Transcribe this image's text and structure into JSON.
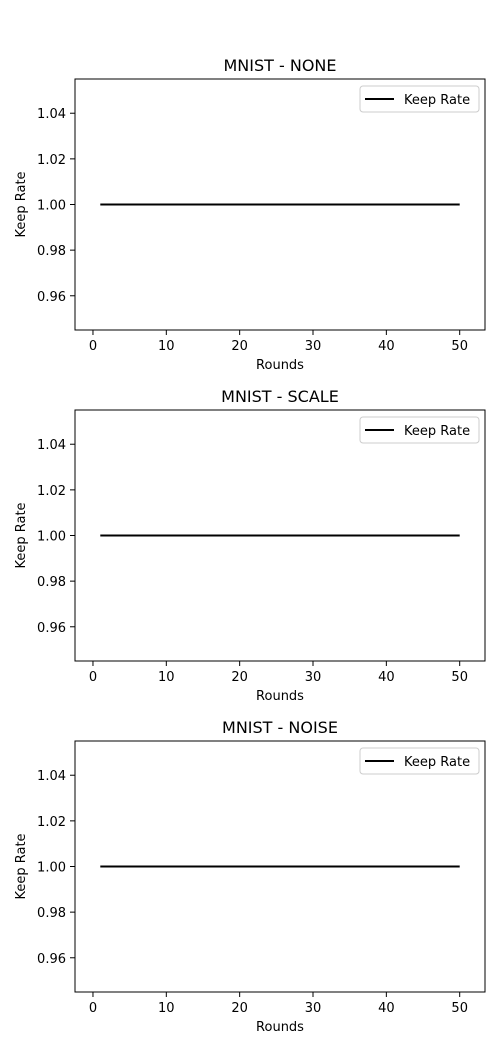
{
  "chart_data": [
    {
      "type": "line",
      "title": "MNIST - NONE",
      "xlabel": "Rounds",
      "ylabel": "Keep Rate",
      "xlim": [
        -2.45,
        53.45
      ],
      "ylim": [
        0.945,
        1.055
      ],
      "xticks": [
        0,
        10,
        20,
        30,
        40,
        50
      ],
      "xtick_labels": [
        "0",
        "10",
        "20",
        "30",
        "40",
        "50"
      ],
      "yticks": [
        0.96,
        0.98,
        1.0,
        1.02,
        1.04
      ],
      "ytick_labels": [
        "0.96",
        "0.98",
        "1.00",
        "1.02",
        "1.04"
      ],
      "grid": false,
      "legend": "top-right",
      "series": [
        {
          "name": "Keep Rate",
          "color": "#000000",
          "x": [
            1,
            50
          ],
          "y": [
            1.0,
            1.0
          ]
        }
      ]
    },
    {
      "type": "line",
      "title": "MNIST - SCALE",
      "xlabel": "Rounds",
      "ylabel": "Keep Rate",
      "xlim": [
        -2.45,
        53.45
      ],
      "ylim": [
        0.945,
        1.055
      ],
      "xticks": [
        0,
        10,
        20,
        30,
        40,
        50
      ],
      "xtick_labels": [
        "0",
        "10",
        "20",
        "30",
        "40",
        "50"
      ],
      "yticks": [
        0.96,
        0.98,
        1.0,
        1.02,
        1.04
      ],
      "ytick_labels": [
        "0.96",
        "0.98",
        "1.00",
        "1.02",
        "1.04"
      ],
      "grid": false,
      "legend": "top-right",
      "series": [
        {
          "name": "Keep Rate",
          "color": "#000000",
          "x": [
            1,
            50
          ],
          "y": [
            1.0,
            1.0
          ]
        }
      ]
    },
    {
      "type": "line",
      "title": "MNIST - NOISE",
      "xlabel": "Rounds",
      "ylabel": "Keep Rate",
      "xlim": [
        -2.45,
        53.45
      ],
      "ylim": [
        0.945,
        1.055
      ],
      "xticks": [
        0,
        10,
        20,
        30,
        40,
        50
      ],
      "xtick_labels": [
        "0",
        "10",
        "20",
        "30",
        "40",
        "50"
      ],
      "yticks": [
        0.96,
        0.98,
        1.0,
        1.02,
        1.04
      ],
      "ytick_labels": [
        "0.96",
        "0.98",
        "1.00",
        "1.02",
        "1.04"
      ],
      "grid": false,
      "legend": "top-right",
      "series": [
        {
          "name": "Keep Rate",
          "color": "#000000",
          "x": [
            1,
            50
          ],
          "y": [
            1.0,
            1.0
          ]
        }
      ]
    }
  ]
}
